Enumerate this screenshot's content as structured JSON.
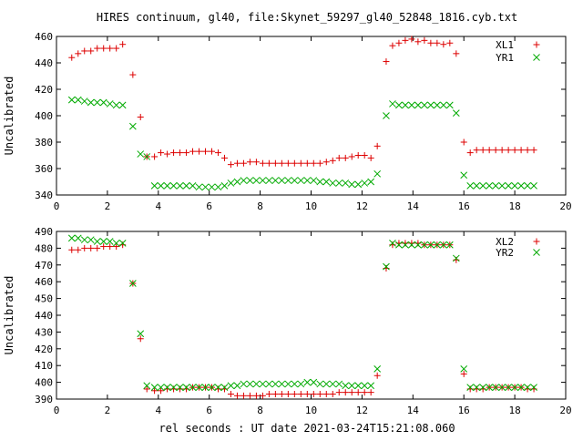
{
  "page_title": "HIRES continuum, gl40, file:Skynet_59297_gl40_52848_1816.cyb.txt",
  "xlabel": "rel seconds : UT date 2021-03-24T15:21:08.060",
  "colors": {
    "red": "#dd0000",
    "green": "#00aa00",
    "axes": "#000000"
  },
  "chart_data": [
    {
      "type": "scatter",
      "title": "HIRES continuum, gl40, file:Skynet_59297_gl40_52848_1816.cyb.txt",
      "xlabel": "",
      "ylabel": "Uncalibrated",
      "xlim": [
        0,
        20
      ],
      "ylim": [
        340,
        460
      ],
      "xticks": [
        0,
        2,
        4,
        6,
        8,
        10,
        12,
        14,
        16,
        18,
        20
      ],
      "yticks": [
        340,
        360,
        380,
        400,
        420,
        440,
        460
      ],
      "grid": false,
      "legend_position": "top-right",
      "x": [
        0.6,
        0.85,
        1.1,
        1.35,
        1.6,
        1.85,
        2.1,
        2.35,
        2.6,
        3.0,
        3.3,
        3.55,
        3.85,
        4.1,
        4.35,
        4.6,
        4.85,
        5.1,
        5.35,
        5.6,
        5.85,
        6.1,
        6.35,
        6.6,
        6.85,
        7.1,
        7.35,
        7.6,
        7.85,
        8.1,
        8.35,
        8.6,
        8.85,
        9.1,
        9.35,
        9.6,
        9.85,
        10.1,
        10.35,
        10.6,
        10.85,
        11.1,
        11.35,
        11.6,
        11.85,
        12.1,
        12.35,
        12.6,
        12.95,
        13.2,
        13.45,
        13.7,
        13.95,
        14.2,
        14.45,
        14.7,
        14.95,
        15.2,
        15.45,
        15.7,
        16.0,
        16.25,
        16.5,
        16.75,
        17.0,
        17.25,
        17.5,
        17.75,
        18.0,
        18.25,
        18.5,
        18.75
      ],
      "series": [
        {
          "name": "XL1",
          "color": "#dd0000",
          "marker": "plus",
          "values": [
            444,
            447,
            449,
            449,
            451,
            451,
            451,
            451,
            454,
            431,
            399,
            369,
            369,
            372,
            371,
            372,
            372,
            372,
            373,
            373,
            373,
            373,
            372,
            368,
            363,
            364,
            364,
            365,
            365,
            364,
            364,
            364,
            364,
            364,
            364,
            364,
            364,
            364,
            364,
            365,
            366,
            368,
            368,
            369,
            370,
            370,
            368,
            377,
            441,
            453,
            455,
            457,
            458,
            456,
            457,
            455,
            455,
            454,
            455,
            447,
            380,
            372,
            374,
            374,
            374,
            374,
            374,
            374,
            374,
            374,
            374,
            374
          ]
        },
        {
          "name": "YR1",
          "color": "#00aa00",
          "marker": "cross",
          "values": [
            412,
            412,
            411,
            410,
            410,
            410,
            409,
            408,
            408,
            392,
            371,
            369,
            347,
            347,
            347,
            347,
            347,
            347,
            347,
            346,
            346,
            346,
            346,
            347,
            349,
            350,
            351,
            351,
            351,
            351,
            351,
            351,
            351,
            351,
            351,
            351,
            351,
            351,
            350,
            350,
            349,
            349,
            349,
            348,
            348,
            349,
            350,
            356,
            400,
            409,
            408,
            408,
            408,
            408,
            408,
            408,
            408,
            408,
            408,
            402,
            355,
            347,
            347,
            347,
            347,
            347,
            347,
            347,
            347,
            347,
            347,
            347
          ]
        }
      ]
    },
    {
      "type": "scatter",
      "title": "",
      "xlabel": "rel seconds : UT date 2021-03-24T15:21:08.060",
      "ylabel": "Uncalibrated",
      "xlim": [
        0,
        20
      ],
      "ylim": [
        390,
        490
      ],
      "xticks": [
        0,
        2,
        4,
        6,
        8,
        10,
        12,
        14,
        16,
        18,
        20
      ],
      "yticks": [
        390,
        400,
        410,
        420,
        430,
        440,
        450,
        460,
        470,
        480,
        490
      ],
      "grid": false,
      "legend_position": "top-right",
      "x": [
        0.6,
        0.85,
        1.1,
        1.35,
        1.6,
        1.85,
        2.1,
        2.35,
        2.6,
        3.0,
        3.3,
        3.55,
        3.85,
        4.1,
        4.35,
        4.6,
        4.85,
        5.1,
        5.35,
        5.6,
        5.85,
        6.1,
        6.35,
        6.6,
        6.85,
        7.1,
        7.35,
        7.6,
        7.85,
        8.1,
        8.35,
        8.6,
        8.85,
        9.1,
        9.35,
        9.6,
        9.85,
        10.1,
        10.35,
        10.6,
        10.85,
        11.1,
        11.35,
        11.6,
        11.85,
        12.1,
        12.35,
        12.6,
        12.95,
        13.2,
        13.45,
        13.7,
        13.95,
        14.2,
        14.45,
        14.7,
        14.95,
        15.2,
        15.45,
        15.7,
        16.0,
        16.25,
        16.5,
        16.75,
        17.0,
        17.25,
        17.5,
        17.75,
        18.0,
        18.25,
        18.5,
        18.75
      ],
      "series": [
        {
          "name": "XL2",
          "color": "#dd0000",
          "marker": "plus",
          "values": [
            479,
            479,
            480,
            480,
            480,
            481,
            481,
            481,
            482,
            459,
            426,
            396,
            395,
            395,
            396,
            396,
            396,
            396,
            397,
            397,
            397,
            397,
            396,
            396,
            393,
            392,
            392,
            392,
            392,
            392,
            393,
            393,
            393,
            393,
            393,
            393,
            393,
            393,
            393,
            393,
            393,
            394,
            394,
            394,
            394,
            394,
            394,
            404,
            468,
            482,
            483,
            483,
            483,
            483,
            482,
            482,
            482,
            482,
            482,
            473,
            405,
            396,
            396,
            396,
            397,
            397,
            397,
            397,
            397,
            397,
            396,
            396
          ]
        },
        {
          "name": "YR2",
          "color": "#00aa00",
          "marker": "cross",
          "values": [
            486,
            486,
            485,
            485,
            484,
            484,
            484,
            483,
            483,
            459,
            429,
            398,
            397,
            397,
            397,
            397,
            397,
            397,
            397,
            397,
            397,
            397,
            397,
            397,
            398,
            398,
            399,
            399,
            399,
            399,
            399,
            399,
            399,
            399,
            399,
            399,
            400,
            400,
            399,
            399,
            399,
            399,
            398,
            398,
            398,
            398,
            398,
            408,
            469,
            483,
            482,
            482,
            482,
            482,
            482,
            482,
            482,
            482,
            482,
            474,
            408,
            397,
            397,
            397,
            397,
            397,
            397,
            397,
            397,
            397,
            397,
            397
          ]
        }
      ]
    }
  ]
}
